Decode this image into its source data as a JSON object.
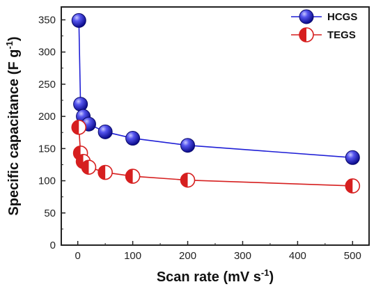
{
  "chart_data": {
    "type": "line",
    "xlabel": "Scan rate (mV s",
    "xlabel_sup": "-1",
    "xlabel_end": ")",
    "ylabel": "Specific capacitance (F g",
    "ylabel_sup": "-1",
    "ylabel_end": ")",
    "xlim": [
      -30,
      530
    ],
    "ylim": [
      0,
      370
    ],
    "xticks": [
      0,
      100,
      200,
      300,
      400,
      500
    ],
    "yticks": [
      0,
      50,
      100,
      150,
      200,
      250,
      300,
      350
    ],
    "legend_position": "top-right",
    "grid": false,
    "series": [
      {
        "name": "HCGS",
        "color": "#1f1fd6",
        "marker": "filled-sphere",
        "x": [
          2,
          5,
          10,
          20,
          50,
          100,
          200,
          500
        ],
        "y": [
          349,
          219,
          200,
          188,
          176,
          166,
          155,
          136
        ]
      },
      {
        "name": "TEGS",
        "color": "#d61f1f",
        "marker": "half-filled",
        "x": [
          2,
          5,
          10,
          20,
          50,
          100,
          200,
          500
        ],
        "y": [
          183,
          143,
          130,
          121,
          113,
          107,
          101,
          92
        ]
      }
    ]
  }
}
